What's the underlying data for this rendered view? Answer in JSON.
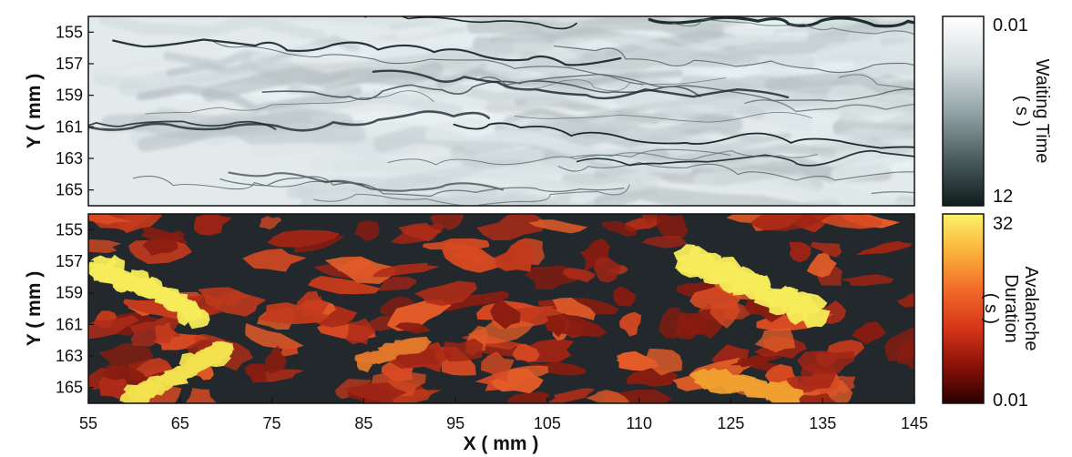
{
  "chart_data": [
    {
      "type": "heatmap",
      "panel": "top",
      "xlabel": "",
      "ylabel": "Y ( mm )",
      "xlim": [
        55,
        145
      ],
      "ylim": [
        154,
        166
      ],
      "yticks": [
        155,
        157,
        159,
        161,
        163,
        165
      ],
      "colorbar": {
        "label": [
          "Waiting Time",
          "( s )"
        ],
        "min_label": "0.01",
        "max_label": "12",
        "colors": [
          "#ffffff",
          "#d7dfe1",
          "#94a4a8",
          "#4d5d5f",
          "#101c1c"
        ]
      },
      "background_color": "#e3eaec",
      "front_color": "#17272a"
    },
    {
      "type": "heatmap",
      "panel": "bottom",
      "xlabel": "X ( mm )",
      "ylabel": "Y ( mm )",
      "xlim": [
        55,
        145
      ],
      "ylim": [
        154,
        166
      ],
      "xticks": [
        55,
        65,
        75,
        85,
        95,
        105,
        110,
        125,
        135,
        145
      ],
      "yticks": [
        155,
        157,
        159,
        161,
        163,
        165
      ],
      "colorbar": {
        "label": [
          "Avalanche",
          "Duration",
          "( s )"
        ],
        "min_label": "0.01",
        "max_label": "32",
        "colors": [
          "#2b0000",
          "#8a1208",
          "#d8361a",
          "#f26a2a",
          "#fbb23a",
          "#fbf26c"
        ]
      },
      "background_color": "#23282c",
      "patch_colors": [
        "#9e2415",
        "#c33a1c",
        "#d84a22",
        "#e35c28",
        "#b02c18",
        "#8a1c10"
      ],
      "highlight_colors": [
        "#f7ec5a",
        "#f2e24e",
        "#f0a030"
      ]
    }
  ]
}
